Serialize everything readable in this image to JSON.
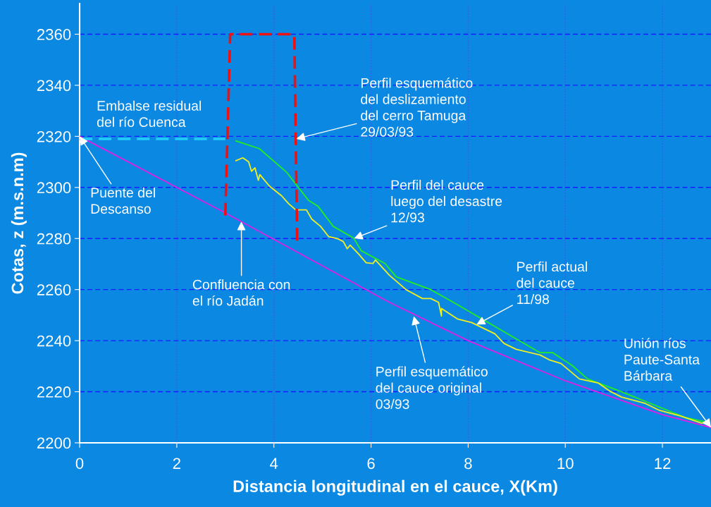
{
  "chart_data": {
    "type": "line",
    "xlabel": "Distancia longitudinal en el cauce, X(Km)",
    "ylabel": "Cotas, z (m.s.n.m)",
    "xlim": [
      0,
      13
    ],
    "ylim": [
      2200,
      2372
    ],
    "xticks": [
      0,
      2,
      4,
      6,
      8,
      10,
      12
    ],
    "yticks": [
      2200,
      2220,
      2240,
      2260,
      2280,
      2300,
      2320,
      2340,
      2360
    ],
    "grid": true,
    "marker": "none",
    "series": [
      {
        "color": "#e020e8",
        "x": [
          0,
          3,
          6.35,
          8,
          10,
          12,
          13
        ],
        "values": [
          2320,
          2290,
          2255.3,
          2240,
          2224.3,
          2211,
          2206
        ]
      },
      {
        "color": "#22ee22",
        "x": [
          3.22,
          3.7,
          4.26,
          4.71,
          4.91,
          5.22,
          5.64,
          5.8,
          6.29,
          6.52,
          7.23,
          7.74,
          9.48,
          9.74,
          10.14,
          10.46,
          11.16,
          12.46,
          12.86
        ],
        "values": [
          2318.2,
          2315.2,
          2306,
          2295,
          2292.6,
          2284.8,
          2280.2,
          2275.2,
          2270.2,
          2265,
          2260,
          2254.5,
          2235.3,
          2235.3,
          2230.3,
          2225,
          2220,
          2210,
          2208.3
        ]
      },
      {
        "color": "#f0f020",
        "x": [
          3.22,
          3.36,
          3.48,
          3.54,
          3.61,
          3.68,
          3.71,
          3.91,
          4.16,
          4.3,
          4.45,
          4.67,
          4.78,
          4.96,
          5.13,
          5.32,
          5.43,
          5.51,
          5.57,
          5.75,
          5.9,
          6.04,
          6.09,
          6.38,
          6.72,
          7.06,
          7.23,
          7.39,
          7.45,
          7.45,
          7.78,
          8.07,
          8.55,
          8.74,
          8.99,
          9.48,
          9.67,
          9.91,
          10.29,
          10.68,
          10.93,
          11.16,
          11.65,
          11.94,
          12.37,
          12.81,
          12.9
        ],
        "values": [
          2310.5,
          2311.6,
          2310,
          2306.3,
          2307.7,
          2302.8,
          2305,
          2300.5,
          2296.7,
          2293.7,
          2291.2,
          2291.2,
          2287.6,
          2284.8,
          2280.7,
          2279.9,
          2278.8,
          2276,
          2277.4,
          2273.8,
          2270.5,
          2270.2,
          2271.6,
          2265.6,
          2260,
          2256.5,
          2256.5,
          2255,
          2249.6,
          2252.6,
          2248.5,
          2247.1,
          2242.7,
          2238.9,
          2236.6,
          2234.4,
          2232.5,
          2231.1,
          2225,
          2223.4,
          2220.1,
          2217.9,
          2215.4,
          2212.7,
          2210.5,
          2207.7,
          2208.3
        ]
      },
      {
        "color": "#ee1111",
        "line_style": "dashed",
        "x": [
          3.0,
          3.1,
          4.42,
          4.48
        ],
        "values": [
          2289,
          2360,
          2360,
          2278
        ]
      },
      {
        "color": "#22ccff",
        "line_style": "dashed",
        "x": [
          0,
          3.0
        ],
        "values": [
          2319,
          2319
        ]
      }
    ],
    "annotations": [
      "Embalse residual\ndel río Cuenca",
      {
        "text": "Puente del\nDescanso",
        "x": 0,
        "y": 2320
      },
      {
        "text": "Perfil esquemático\ndel deslizamiento\ndel cerro Tamuga\n29/03/93",
        "x": 4.46,
        "y": 2319
      },
      {
        "text": "Perfil del cauce\nluego del desastre\n12/93",
        "x": 5.65,
        "y": 2280
      },
      {
        "text": "Confluencia con\nel río Jadán",
        "x": 3.33,
        "y": 2286.6
      },
      {
        "text": "Perfil actual\ndel cauce\n11/98",
        "x": 8.17,
        "y": 2246.3
      },
      {
        "text": "Perfil esquemático\ndel cauce original\n03/93",
        "x": 6.88,
        "y": 2249.6
      },
      {
        "text": "Unión ríos\nPaute-Santa\nBárbara",
        "x": 13,
        "y": 2206
      }
    ]
  }
}
